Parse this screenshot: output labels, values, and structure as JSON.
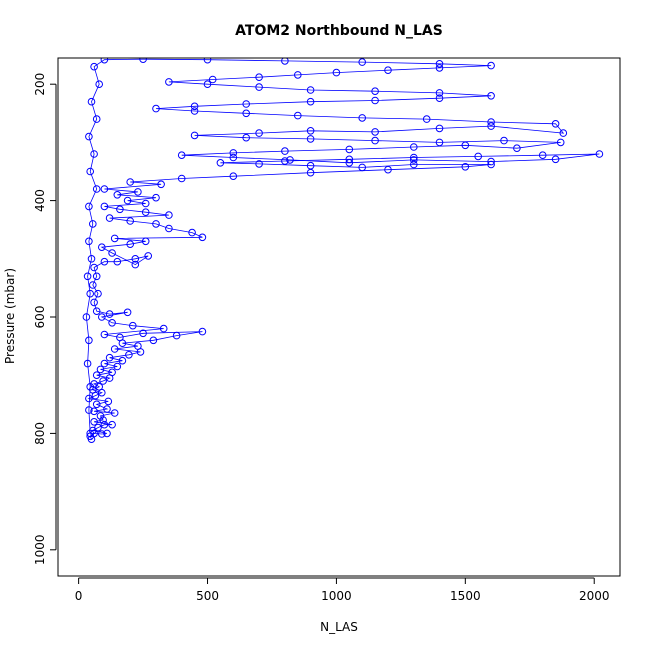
{
  "chart_data": {
    "type": "scatter",
    "title": "ATOM2 Northbound N_LAS",
    "xlabel": "N_LAS",
    "ylabel": "Pressure (mbar)",
    "xlim": [
      -80,
      2100
    ],
    "ylim": [
      1045,
      155
    ],
    "y_reversed": true,
    "grid": false,
    "legend": "none",
    "plot_style": "points connected by lines (open circles)",
    "color": "#0000ff",
    "x_ticks": [
      0,
      500,
      1000,
      1500,
      2000
    ],
    "y_ticks": [
      200,
      400,
      600,
      800,
      1000
    ],
    "series": [
      {
        "name": "",
        "points": [
          [
            50,
            810
          ],
          [
            45,
            805
          ],
          [
            60,
            800
          ],
          [
            90,
            801
          ],
          [
            110,
            800
          ],
          [
            55,
            795
          ],
          [
            75,
            790
          ],
          [
            100,
            785
          ],
          [
            130,
            785
          ],
          [
            60,
            780
          ],
          [
            95,
            777
          ],
          [
            85,
            770
          ],
          [
            140,
            765
          ],
          [
            60,
            762
          ],
          [
            110,
            758
          ],
          [
            70,
            750
          ],
          [
            115,
            745
          ],
          [
            40,
            740
          ],
          [
            65,
            735
          ],
          [
            90,
            730
          ],
          [
            55,
            725
          ],
          [
            80,
            720
          ],
          [
            60,
            715
          ],
          [
            95,
            710
          ],
          [
            120,
            705
          ],
          [
            70,
            700
          ],
          [
            130,
            695
          ],
          [
            85,
            690
          ],
          [
            150,
            685
          ],
          [
            100,
            680
          ],
          [
            170,
            675
          ],
          [
            120,
            670
          ],
          [
            195,
            665
          ],
          [
            240,
            660
          ],
          [
            140,
            655
          ],
          [
            230,
            650
          ],
          [
            170,
            645
          ],
          [
            290,
            640
          ],
          [
            380,
            632
          ],
          [
            480,
            625
          ],
          [
            250,
            628
          ],
          [
            160,
            635
          ],
          [
            100,
            630
          ],
          [
            330,
            620
          ],
          [
            210,
            615
          ],
          [
            130,
            610
          ],
          [
            90,
            600
          ],
          [
            190,
            592
          ],
          [
            120,
            595
          ],
          [
            70,
            590
          ],
          [
            60,
            575
          ],
          [
            75,
            560
          ],
          [
            55,
            545
          ],
          [
            70,
            530
          ],
          [
            60,
            515
          ],
          [
            100,
            505
          ],
          [
            150,
            505
          ],
          [
            220,
            500
          ],
          [
            270,
            495
          ],
          [
            220,
            510
          ],
          [
            130,
            490
          ],
          [
            90,
            480
          ],
          [
            200,
            475
          ],
          [
            260,
            470
          ],
          [
            140,
            465
          ],
          [
            480,
            463
          ],
          [
            440,
            455
          ],
          [
            350,
            448
          ],
          [
            300,
            440
          ],
          [
            200,
            435
          ],
          [
            120,
            430
          ],
          [
            350,
            425
          ],
          [
            260,
            420
          ],
          [
            160,
            415
          ],
          [
            100,
            410
          ],
          [
            260,
            405
          ],
          [
            190,
            400
          ],
          [
            300,
            395
          ],
          [
            150,
            390
          ],
          [
            230,
            385
          ],
          [
            100,
            380
          ],
          [
            320,
            372
          ],
          [
            200,
            368
          ],
          [
            400,
            362
          ],
          [
            600,
            358
          ],
          [
            900,
            352
          ],
          [
            1200,
            347
          ],
          [
            1500,
            342
          ],
          [
            1600,
            338
          ],
          [
            1300,
            338
          ],
          [
            1100,
            343
          ],
          [
            900,
            340
          ],
          [
            700,
            337
          ],
          [
            550,
            335
          ],
          [
            800,
            332
          ],
          [
            1050,
            329
          ],
          [
            1300,
            326
          ],
          [
            1550,
            324
          ],
          [
            1800,
            322
          ],
          [
            2020,
            320
          ],
          [
            1850,
            329
          ],
          [
            1600,
            333
          ],
          [
            1300,
            330
          ],
          [
            1050,
            335
          ],
          [
            820,
            330
          ],
          [
            600,
            326
          ],
          [
            400,
            322
          ],
          [
            600,
            318
          ],
          [
            800,
            315
          ],
          [
            1050,
            312
          ],
          [
            1300,
            308
          ],
          [
            1500,
            305
          ],
          [
            1700,
            310
          ],
          [
            1870,
            300
          ],
          [
            1650,
            297
          ],
          [
            1400,
            300
          ],
          [
            1150,
            297
          ],
          [
            900,
            294
          ],
          [
            650,
            292
          ],
          [
            450,
            288
          ],
          [
            700,
            284
          ],
          [
            900,
            280
          ],
          [
            1150,
            282
          ],
          [
            1400,
            276
          ],
          [
            1600,
            272
          ],
          [
            1880,
            284
          ],
          [
            1850,
            268
          ],
          [
            1600,
            265
          ],
          [
            1350,
            260
          ],
          [
            1100,
            258
          ],
          [
            850,
            254
          ],
          [
            650,
            250
          ],
          [
            450,
            246
          ],
          [
            300,
            242
          ],
          [
            450,
            238
          ],
          [
            650,
            234
          ],
          [
            900,
            230
          ],
          [
            1150,
            228
          ],
          [
            1400,
            224
          ],
          [
            1600,
            220
          ],
          [
            1400,
            215
          ],
          [
            1150,
            212
          ],
          [
            900,
            210
          ],
          [
            700,
            205
          ],
          [
            500,
            200
          ],
          [
            350,
            196
          ],
          [
            520,
            192
          ],
          [
            700,
            188
          ],
          [
            850,
            184
          ],
          [
            1000,
            180
          ],
          [
            1200,
            176
          ],
          [
            1400,
            172
          ],
          [
            1600,
            168
          ],
          [
            1400,
            165
          ],
          [
            1100,
            162
          ],
          [
            800,
            160
          ],
          [
            500,
            158
          ],
          [
            250,
            157
          ],
          [
            100,
            158
          ],
          [
            60,
            170
          ],
          [
            80,
            200
          ],
          [
            50,
            230
          ],
          [
            70,
            260
          ],
          [
            40,
            290
          ],
          [
            60,
            320
          ],
          [
            45,
            350
          ],
          [
            70,
            380
          ],
          [
            40,
            410
          ],
          [
            55,
            440
          ],
          [
            40,
            470
          ],
          [
            50,
            500
          ],
          [
            35,
            530
          ],
          [
            45,
            560
          ],
          [
            30,
            600
          ],
          [
            40,
            640
          ],
          [
            35,
            680
          ],
          [
            45,
            720
          ],
          [
            40,
            760
          ],
          [
            45,
            800
          ]
        ]
      }
    ]
  }
}
